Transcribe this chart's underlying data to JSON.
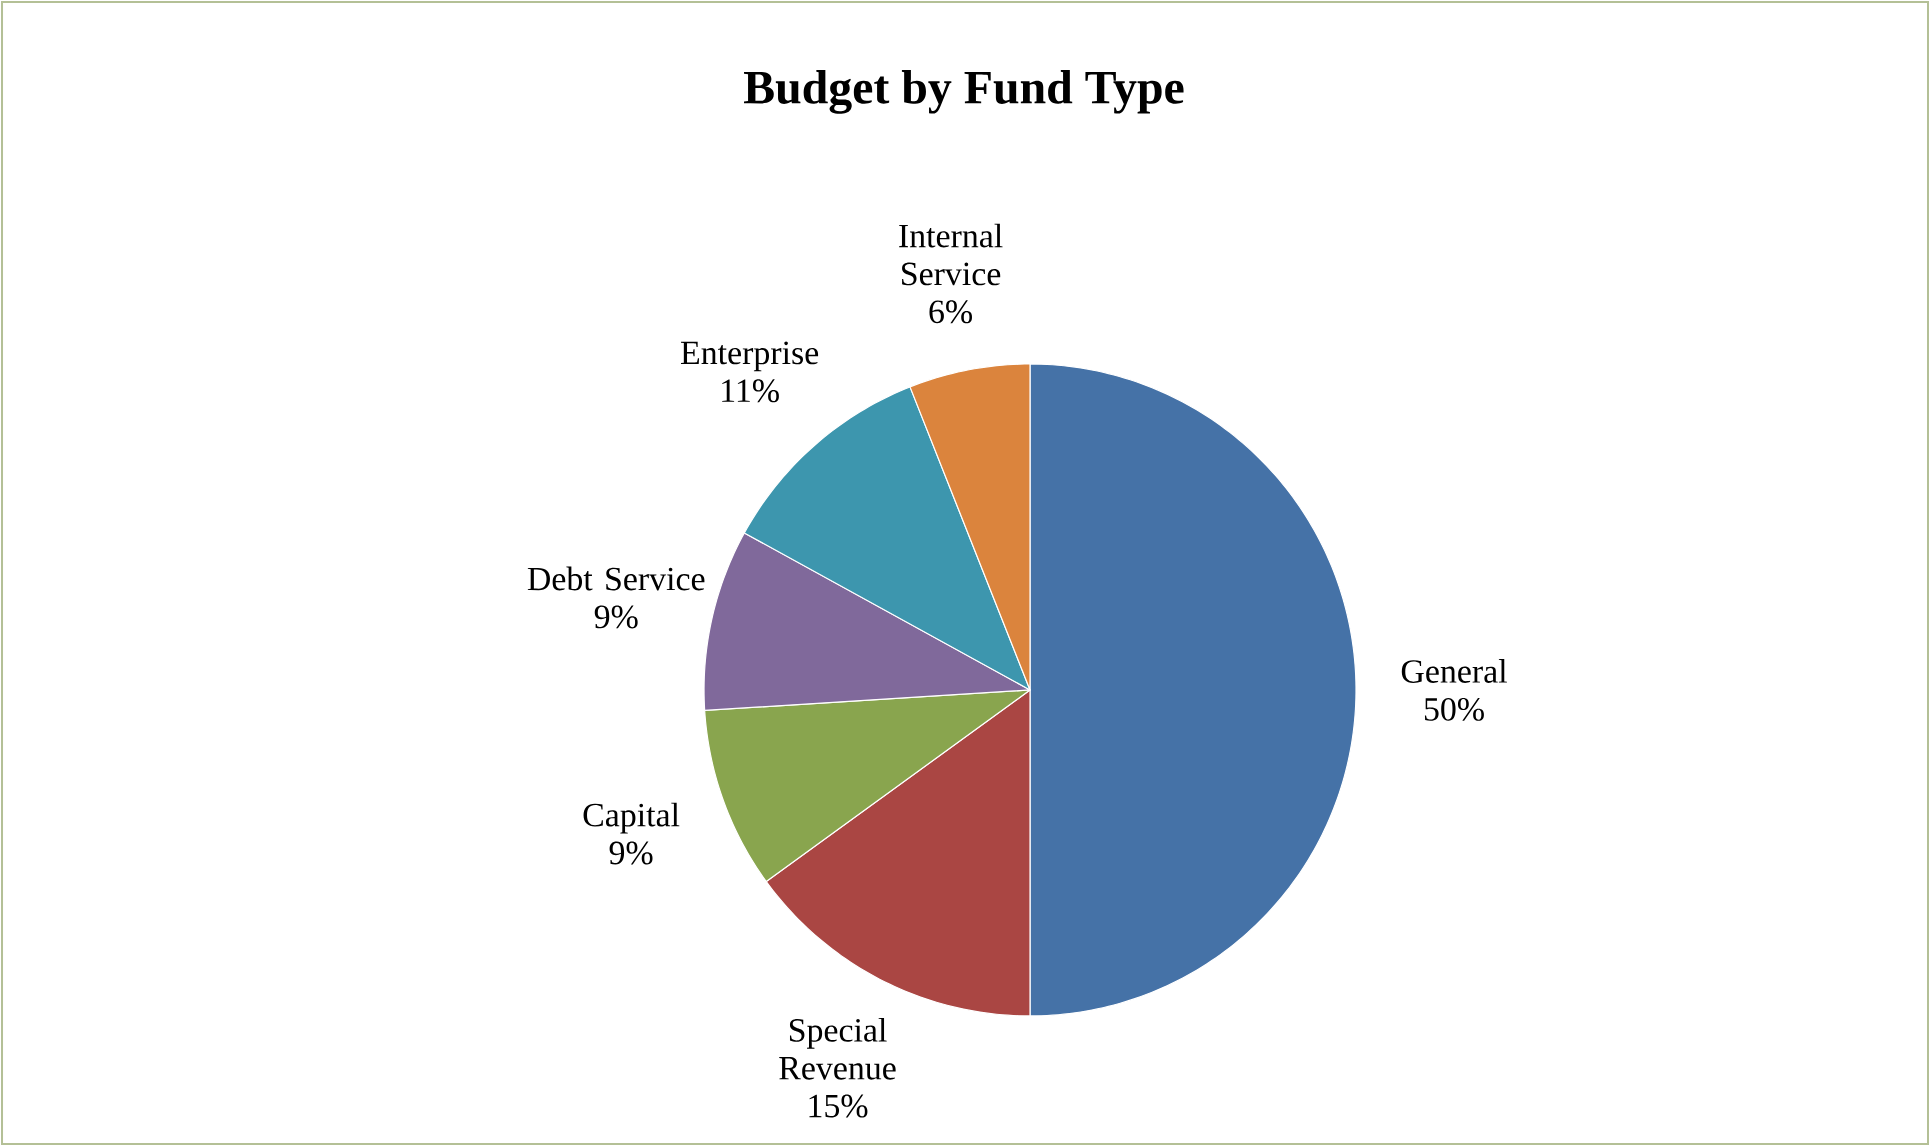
{
  "chart_data": {
    "type": "pie",
    "title": "Budget by Fund Type",
    "categories": [
      "General",
      "Special Revenue",
      "Capital",
      "Debt Service",
      "Enterprise",
      "Internal Service"
    ],
    "values": [
      50,
      15,
      9,
      9,
      11,
      6
    ],
    "value_labels": [
      "50%",
      "15%",
      "9%",
      "9%",
      "11%",
      "6%"
    ],
    "colors": [
      "#4572a7",
      "#aa4643",
      "#89a54e",
      "#80699b",
      "#3d96ae",
      "#db843d"
    ]
  }
}
